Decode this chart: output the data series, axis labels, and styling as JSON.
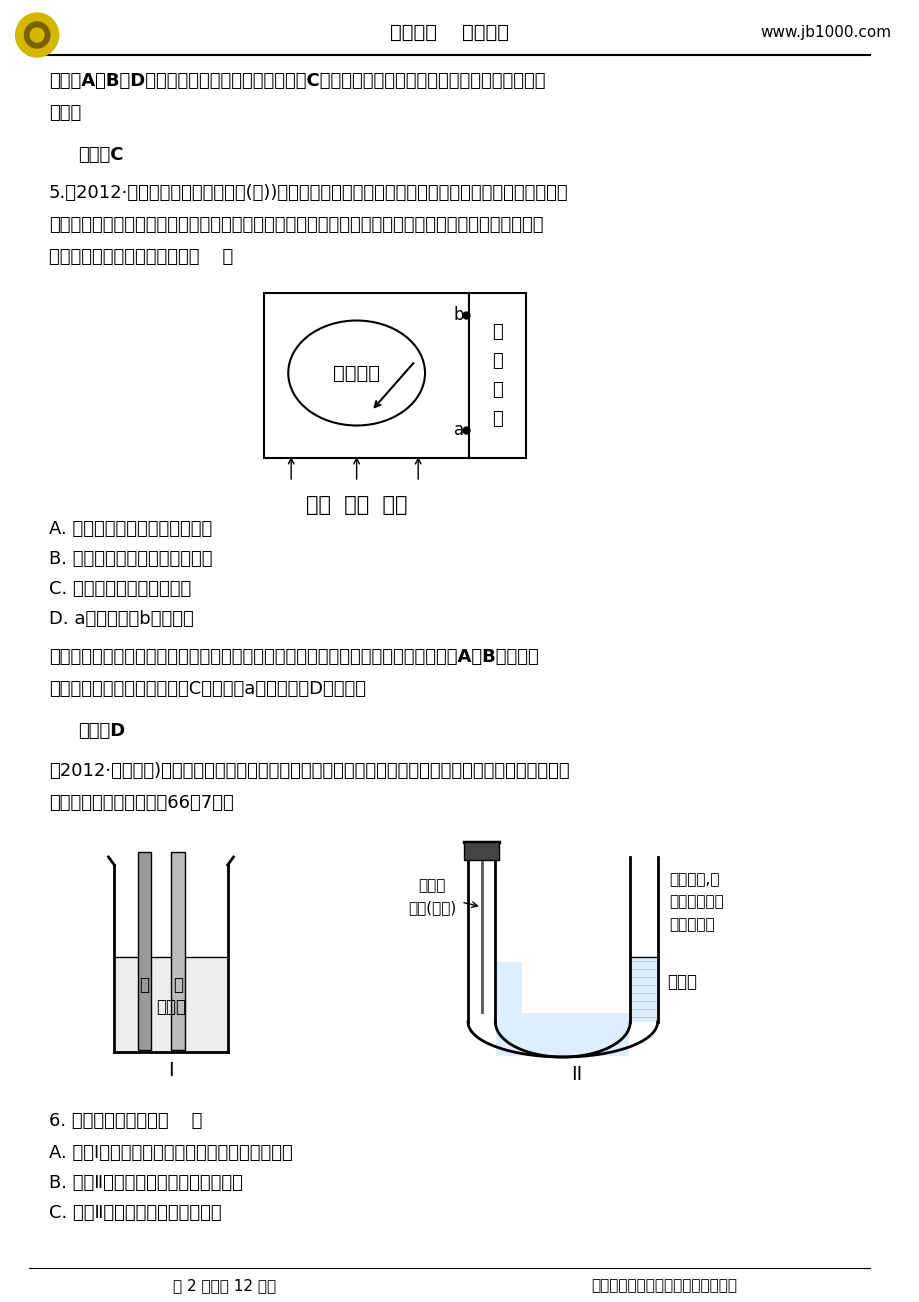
{
  "bg_color": "#ffffff",
  "header_title": "世纪金榜    圆您梦想",
  "header_url": "www.jb1000.com",
  "line1": "解析：A、B、D均可构成原电池而加速铁的腑蚀，C中铜镀层把铁完全覆盖，构不成原电池，不易被",
  "line2": "腑蚀。",
  "answer1_label": "答案：C",
  "q5_text": "5.（2012·陕西省长安一中高三质检(二))某学生设计了一个「黑笔写红字」的趣味实验。滤纸先用氯化",
  "q5_line2": "鑙、无色酚酦的混合液浸湿，然后平铺在一块铂片上，接通电源后，用铅笔在滤纸上写字，会出现红色字",
  "q5_line3": "迹。据此，下列叙述正确的是（    ）",
  "diagram1_label1": "滤纸  铂片  铅笔",
  "diagram1_b": "b",
  "diagram1_a": "a",
  "diagram1_dc": "直\n流\n电\n源",
  "diagram1_text": "预防甲流",
  "q5_A": "A. 铅笔端作阳极，发生还原反应",
  "q5_B": "B. 铂片端作阴极，发生氧化反应",
  "q5_C": "C. 铅笔端有少量的氯气产生",
  "q5_D": "D. a极是负极，b极是正极",
  "jiexi2_text": "解析：出现红色字迹，说明笔尖生成氢氧根离子，所以铅笔端是阴极，铂片端是阳极，A、B项错误；",
  "jiexi2_line2": "铅笔端产生氢气，不是氯气，C项错误；a极是负极，D项正确。",
  "answer2_label": "答案：D",
  "q6_intro1": "（2012·濰坊模拟)下面两套实验装置，都涉及金属的腑蚀反应，假设其中的金属块和金属丝都是足量的。",
  "q6_intro2": "请同学们仔细观察，完成66～7题。",
  "diagram2_label_I": "I",
  "diagram2_label_II": "II",
  "diagram2_tong": "鑄",
  "diagram2_tie": "铁",
  "diagram2_acid": "浓砵酸",
  "diagram2_fixed": "固定的\n铁丝(含碳)",
  "diagram2_oxygen": "充满氧气,铁\n丝末端靠近液\n面但未接触",
  "diagram2_dilute": "稀硫酸",
  "q6_text": "6. 下列叙述正确的是（    ）",
  "q6_A": "A. 装置Ⅰ在反应过程中自始至终只生成红棕色气体",
  "q6_B": "B. 装置Ⅱ开始阶段铁丝只发生析氢腑蚀",
  "q6_C": "C. 装置Ⅱ在反应过程中能产生氢气",
  "footer_left": "第 2 页（共 12 页）",
  "footer_right": "山东世纪金榜科教文化股份有限公司"
}
